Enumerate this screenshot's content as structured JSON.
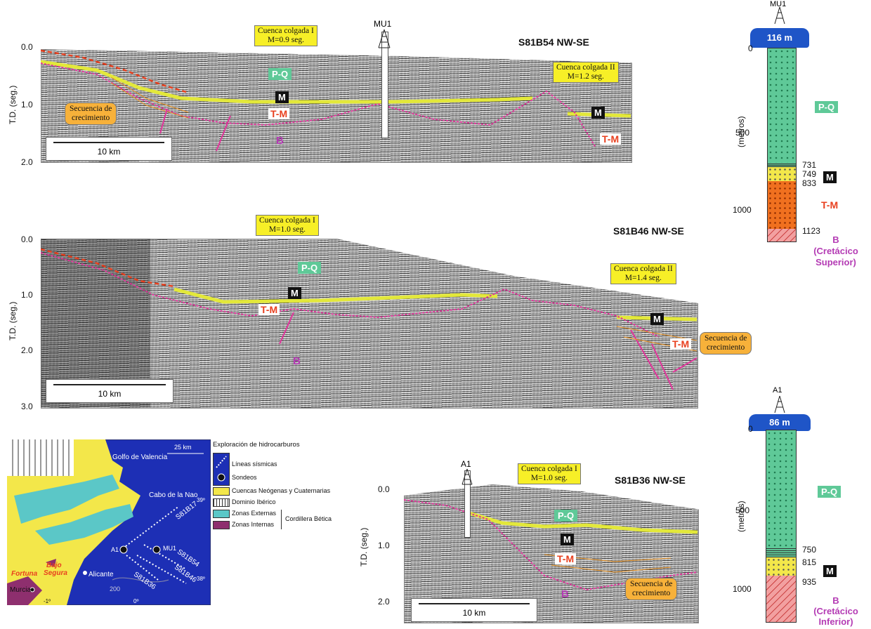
{
  "profiles": [
    {
      "title": "S81B54 NW-SE",
      "yticks": [
        "0.0",
        "1.0",
        "2.0"
      ],
      "ylabel": "T.D. (seg.)",
      "scale": "10 km",
      "well": "MU1",
      "boxes": [
        {
          "l1": "Cuenca colgada I",
          "l2": "M=0.9 seg."
        },
        {
          "l1": "Cuenca colgada II",
          "l2": "M=1.2 seg."
        }
      ],
      "growth": {
        "l1": "Secuencia de",
        "l2": "crecimiento"
      },
      "units": {
        "pq": "P-Q",
        "m": "M",
        "tm": "T-M",
        "b": "B"
      }
    },
    {
      "title": "S81B46 NW-SE",
      "yticks": [
        "0.0",
        "1.0",
        "2.0",
        "3.0"
      ],
      "ylabel": "T.D. (seg.)",
      "scale": "10 km",
      "boxes": [
        {
          "l1": "Cuenca colgada I",
          "l2": "M=1.0 seg."
        },
        {
          "l1": "Cuenca colgada II",
          "l2": "M=1.4 seg."
        }
      ],
      "growth": {
        "l1": "Secuencia de",
        "l2": "crecimiento"
      },
      "units": {
        "pq": "P-Q",
        "m": "M",
        "tm": "T-M",
        "b": "B"
      }
    },
    {
      "title": "S81B36 NW-SE",
      "yticks": [
        "0.0",
        "1.0",
        "2.0"
      ],
      "ylabel": "T.D. (seg.)",
      "scale": "10 km",
      "well": "A1",
      "boxes": [
        {
          "l1": "Cuenca colgada I",
          "l2": "M=1.0 seg."
        }
      ],
      "growth": {
        "l1": "Secuencia de",
        "l2": "crecimiento"
      },
      "units": {
        "pq": "P-Q",
        "m": "M",
        "tm": "T-M",
        "b": "B"
      }
    }
  ],
  "wells": [
    {
      "name": "MU1",
      "water": "116 m",
      "ylabel": "(metros)",
      "ticks": [
        "0",
        "500",
        "1000"
      ],
      "depths": [
        "731",
        "749",
        "833",
        "1123"
      ],
      "units": {
        "pq": "P-Q",
        "m": "M",
        "tm": "T-M",
        "b": "B",
        "b_sub1": "(Cretácico",
        "b_sub2": "Superior)"
      }
    },
    {
      "name": "A1",
      "water": "86 m",
      "ylabel": "(metros)",
      "ticks": [
        "0",
        "500",
        "1000"
      ],
      "depths": [
        "750",
        "815",
        "935"
      ],
      "units": {
        "pq": "P-Q",
        "m": "M",
        "b": "B",
        "b_sub1": "(Cretácico",
        "b_sub2": "Inferior)"
      }
    }
  ],
  "map": {
    "scale": "25 km",
    "places": [
      "Golfo de Valencia",
      "Cabo de la Nao",
      "Alicante",
      "Murcia",
      "Fortuna",
      "Bajo",
      "Segura",
      "MU1",
      "A1"
    ],
    "lines": [
      "S81B17",
      "S81B54",
      "S81B46",
      "S81B36"
    ],
    "grid": [
      "39º",
      "38º",
      "-1º",
      "0º",
      "200"
    ],
    "legend": {
      "title": "Exploración de hidrocarburos",
      "lineas": "Líneas sísmicas",
      "sondeos": "Sondeos",
      "cuencas": "Cuencas Neógenas y Cuaternarias",
      "iberico": "Dominio Ibérico",
      "externas": "Zonas Externas",
      "internas": "Zonas Internas",
      "betica": "Cordillera Bética"
    }
  },
  "colors": {
    "pq": "#5fc998",
    "tm": "#e8401f",
    "b": "#b43bb4",
    "m_line": "#e3e83a",
    "box": "#f7ef27",
    "growth": "#f7b13a",
    "sea": "#1d2fb5",
    "water": "#1f55c7"
  }
}
